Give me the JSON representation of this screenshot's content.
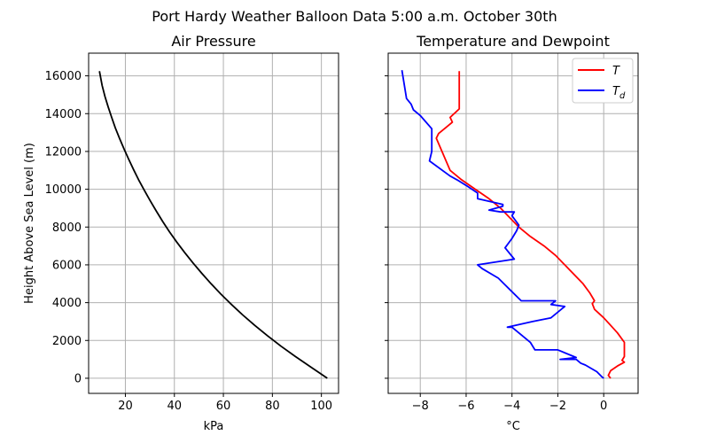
{
  "figure": {
    "title": "Port Hardy Weather Balloon Data 5:00 a.m. October 30th"
  },
  "chart_data": [
    {
      "type": "line",
      "title": "Air Pressure",
      "xlabel": "kPa",
      "ylabel": "Height Above Sea Level (m)",
      "xlim": [
        5,
        107
      ],
      "ylim": [
        -800,
        17200
      ],
      "xticks": [
        20,
        40,
        60,
        80,
        100
      ],
      "yticks": [
        0,
        2000,
        4000,
        6000,
        8000,
        10000,
        12000,
        14000,
        16000
      ],
      "xtick_labels": [
        "20",
        "40",
        "60",
        "80",
        "100"
      ],
      "ytick_labels": [
        "0",
        "2000",
        "4000",
        "6000",
        "8000",
        "10000",
        "12000",
        "14000",
        "16000"
      ],
      "grid": true,
      "series": [
        {
          "color": "#000000",
          "x": [
            102.4,
            95.6,
            89.4,
            83.5,
            78.0,
            72.8,
            67.9,
            63.3,
            59.0,
            55.0,
            51.2,
            47.6,
            44.2,
            41.0,
            38.0,
            35.2,
            32.6,
            30.1,
            27.7,
            25.4,
            23.3,
            21.3,
            19.4,
            17.6,
            15.9,
            14.4,
            13.0,
            11.7,
            10.5,
            9.4
          ],
          "y": [
            0,
            600,
            1150,
            1700,
            2250,
            2800,
            3350,
            3900,
            4450,
            5000,
            5550,
            6100,
            6650,
            7200,
            7750,
            8300,
            8850,
            9400,
            9950,
            10500,
            11050,
            11600,
            12150,
            12700,
            13250,
            13800,
            14350,
            14900,
            15500,
            16250
          ]
        }
      ]
    },
    {
      "type": "line",
      "title": "Temperature and Dewpoint",
      "xlabel": "°C",
      "xlim": [
        -9.4,
        1.5
      ],
      "ylim": [
        -800,
        17200
      ],
      "xticks": [
        -8,
        -6,
        -4,
        -2,
        0
      ],
      "xtick_labels": [
        "−8",
        "−6",
        "−4",
        "−2",
        "0"
      ],
      "grid": true,
      "legend": "top-right",
      "series": [
        {
          "name": "T",
          "color": "#ff0000",
          "x": [
            0.3,
            0.2,
            0.3,
            0.6,
            0.9,
            0.8,
            0.9,
            0.9,
            0.9,
            0.6,
            0.3,
            0.0,
            -0.4,
            -0.5,
            -0.4,
            -0.6,
            -0.9,
            -1.3,
            -1.7,
            -2.1,
            -2.6,
            -3.2,
            -3.7,
            -4.1,
            -4.5,
            -5.0,
            -5.6,
            -6.2,
            -6.7,
            -7.3,
            -7.2,
            -6.9,
            -6.6,
            -6.7,
            -6.3,
            -6.3,
            -6.3,
            -6.3
          ],
          "y": [
            0,
            150,
            400,
            650,
            850,
            950,
            1150,
            1500,
            1900,
            2400,
            2800,
            3200,
            3650,
            3950,
            4100,
            4500,
            5000,
            5500,
            6000,
            6500,
            7000,
            7500,
            8000,
            8500,
            9000,
            9500,
            10000,
            10500,
            11000,
            12700,
            12950,
            13250,
            13550,
            13800,
            14250,
            14400,
            15800,
            16250
          ]
        },
        {
          "name": "Td",
          "color": "#0000ff",
          "x": [
            0.0,
            -0.1,
            -0.3,
            -0.8,
            -1.0,
            -1.2,
            -1.9,
            -1.2,
            -2.0,
            -3.0,
            -3.2,
            -4.0,
            -4.2,
            -3.1,
            -2.3,
            -1.7,
            -2.3,
            -2.1,
            -3.6,
            -4.1,
            -4.6,
            -5.3,
            -5.5,
            -3.9,
            -4.3,
            -4.0,
            -3.8,
            -3.7,
            -4.0,
            -3.9,
            -4.5,
            -5.0,
            -4.4,
            -4.4,
            -5.5,
            -5.5,
            -6.0,
            -6.4,
            -6.7,
            -7.6,
            -7.5,
            -7.5,
            -8.0,
            -8.3,
            -8.4,
            -8.6,
            -8.8
          ],
          "y": [
            0,
            100,
            350,
            700,
            800,
            1000,
            1000,
            1100,
            1500,
            1500,
            1900,
            2700,
            2700,
            3000,
            3200,
            3800,
            3900,
            4100,
            4100,
            4700,
            5300,
            5800,
            6000,
            6300,
            6900,
            7400,
            7800,
            8100,
            8600,
            8800,
            8800,
            8900,
            9100,
            9200,
            9500,
            9800,
            10200,
            10500,
            10700,
            11500,
            12000,
            13200,
            13900,
            14200,
            14500,
            14800,
            16300
          ]
        }
      ]
    }
  ]
}
